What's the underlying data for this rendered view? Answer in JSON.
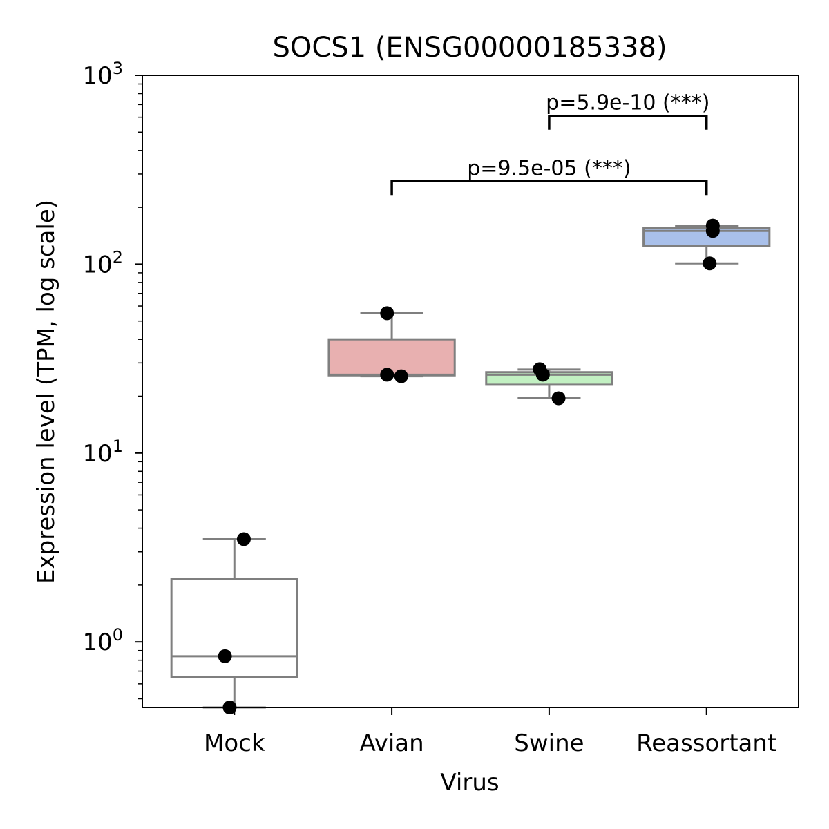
{
  "chart_data": {
    "type": "box",
    "title": "SOCS1 (ENSG00000185338)",
    "xlabel": "Virus",
    "ylabel": "Expression level (TPM, log scale)",
    "yscale": "log",
    "ylim": [
      0.45,
      1000
    ],
    "yticks": [
      {
        "value": 1,
        "base": "10",
        "exp": "0"
      },
      {
        "value": 10,
        "base": "10",
        "exp": "1"
      },
      {
        "value": 100,
        "base": "10",
        "exp": "2"
      },
      {
        "value": 1000,
        "base": "10",
        "exp": "3"
      }
    ],
    "grid": false,
    "categories": [
      "Mock",
      "Avian",
      "Swine",
      "Reassortant"
    ],
    "boxes": [
      {
        "category": "Mock",
        "color": "#ffffff",
        "whislo": 0.45,
        "q1": 0.65,
        "med": 0.84,
        "q3": 2.15,
        "whishi": 3.5
      },
      {
        "category": "Avian",
        "color": "#e8b0b0",
        "whislo": 25.5,
        "q1": 25.8,
        "med": 26.0,
        "q3": 40.0,
        "whishi": 55.0
      },
      {
        "category": "Swine",
        "color": "#c2f0c2",
        "whislo": 19.5,
        "q1": 23.0,
        "med": 26.0,
        "q3": 26.8,
        "whishi": 27.7
      },
      {
        "category": "Reassortant",
        "color": "#a9c0ea",
        "whislo": 101,
        "q1": 125,
        "med": 150,
        "q3": 155,
        "whishi": 160
      }
    ],
    "points": [
      {
        "category": "Mock",
        "value": 3.5,
        "jitter": 0.06
      },
      {
        "category": "Mock",
        "value": 0.84,
        "jitter": -0.06
      },
      {
        "category": "Mock",
        "value": 0.45,
        "jitter": -0.03
      },
      {
        "category": "Avian",
        "value": 55.0,
        "jitter": -0.03
      },
      {
        "category": "Avian",
        "value": 26.0,
        "jitter": -0.03
      },
      {
        "category": "Avian",
        "value": 25.5,
        "jitter": 0.06
      },
      {
        "category": "Swine",
        "value": 27.8,
        "jitter": -0.06
      },
      {
        "category": "Swine",
        "value": 26.0,
        "jitter": -0.04
      },
      {
        "category": "Swine",
        "value": 19.5,
        "jitter": 0.06
      },
      {
        "category": "Reassortant",
        "value": 160,
        "jitter": 0.04
      },
      {
        "category": "Reassortant",
        "value": 150,
        "jitter": 0.04
      },
      {
        "category": "Reassortant",
        "value": 101,
        "jitter": 0.02
      }
    ],
    "annotations": [
      {
        "from": "Avian",
        "to": "Reassortant",
        "text": "p=9.5e-05 (***)",
        "y": 275
      },
      {
        "from": "Swine",
        "to": "Reassortant",
        "text": "p=5.9e-10 (***)",
        "y": 610
      }
    ]
  }
}
